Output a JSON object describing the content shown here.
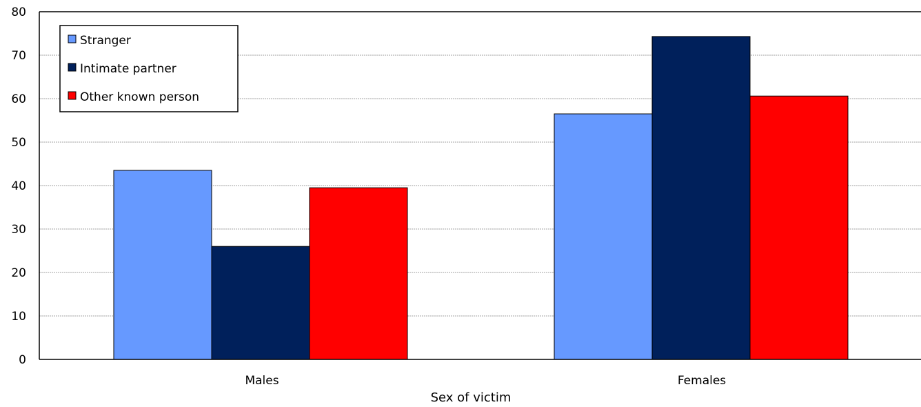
{
  "chart_data": {
    "type": "bar",
    "categories": [
      "Males",
      "Females"
    ],
    "series": [
      {
        "name": "Stranger",
        "values": [
          43.5,
          56.5
        ],
        "color": "#6699FF"
      },
      {
        "name": "Intimate partner",
        "values": [
          26.0,
          74.3
        ],
        "color": "#00205B"
      },
      {
        "name": "Other known person",
        "values": [
          39.5,
          60.6
        ],
        "color": "#FF0000"
      }
    ],
    "xlabel": "Sex of victim",
    "ylabel": "",
    "ylim": [
      0,
      80
    ],
    "yticks": [
      "0",
      "10",
      "20",
      "30",
      "40",
      "50",
      "60",
      "70",
      "80"
    ],
    "grid": true,
    "legend_position": "top-left"
  }
}
